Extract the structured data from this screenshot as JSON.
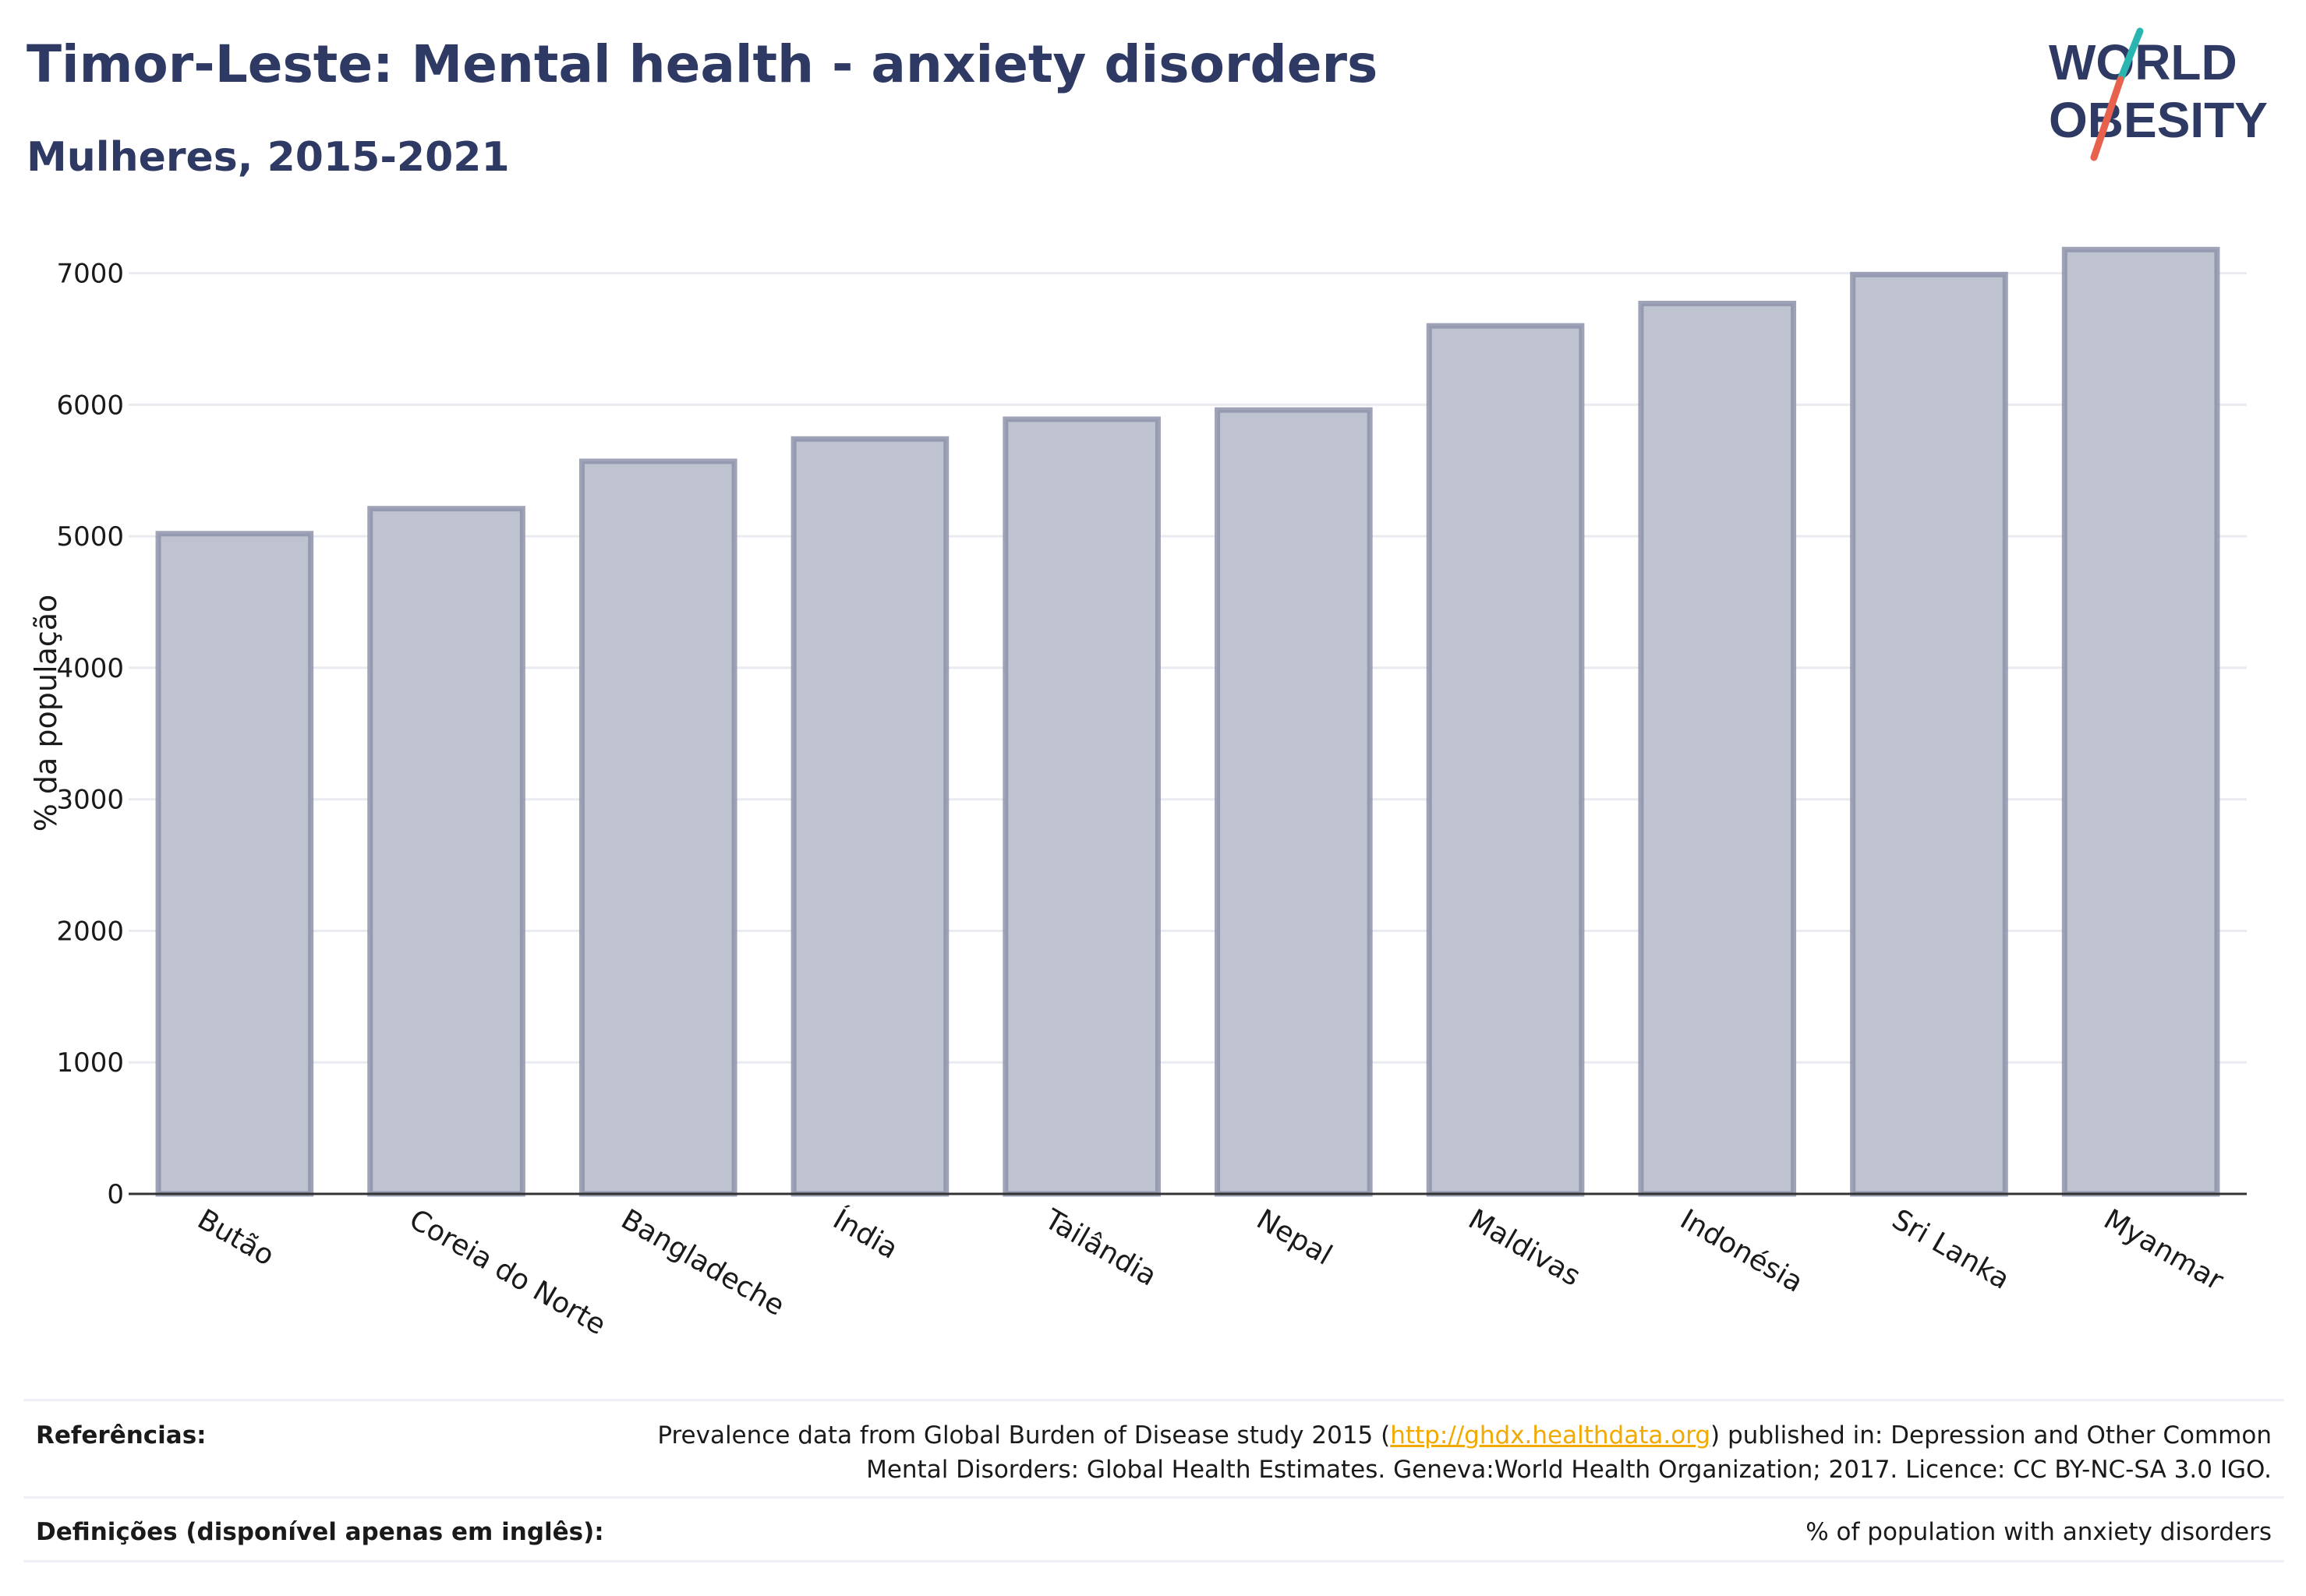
{
  "header": {
    "title": "Timor-Leste: Mental health - anxiety disorders",
    "subtitle": "Mulheres, 2015-2021"
  },
  "logo": {
    "line1": "WORLD",
    "line2": "OBESITY",
    "text_color": "#2e3a63",
    "slash_color_top": "#2bb5b0",
    "slash_color_bottom": "#e8614d"
  },
  "colors": {
    "bar_fill": "#bfc2cf",
    "bar_stroke": "#8e93ab",
    "grid": "#e9ebf0",
    "axis": "#333333"
  },
  "chart_data": {
    "type": "bar",
    "title": "Timor-Leste: Mental health - anxiety disorders",
    "subtitle": "Mulheres, 2015-2021",
    "ylabel": "% da população",
    "xlabel": "",
    "categories": [
      "Butão",
      "Coreia do Norte",
      "Bangladeche",
      "Índia",
      "Tailândia",
      "Nepal",
      "Maldivas",
      "Indonésia",
      "Sri Lanka",
      "Myanmar"
    ],
    "values": [
      5020,
      5210,
      5570,
      5740,
      5890,
      5960,
      6600,
      6770,
      6990,
      7180
    ],
    "ylim": [
      0,
      7300
    ],
    "yticks": [
      0,
      1000,
      2000,
      3000,
      4000,
      5000,
      6000,
      7000
    ],
    "grid": true,
    "legend": "none"
  },
  "footer": {
    "references_label": "Referências:",
    "references_text_before": "Prevalence data from Global Burden of Disease study 2015 (",
    "references_link": "http://ghdx.healthdata.org",
    "references_text_after": ") published in: Depression and Other Common",
    "references_line2": "Mental Disorders: Global Health Estimates. Geneva:World Health Organization; 2017. Licence: CC BY-NC-SA 3.0 IGO.",
    "definitions_label": "Definições (disponível apenas em inglês):",
    "definitions_text": "% of population with anxiety disorders"
  }
}
